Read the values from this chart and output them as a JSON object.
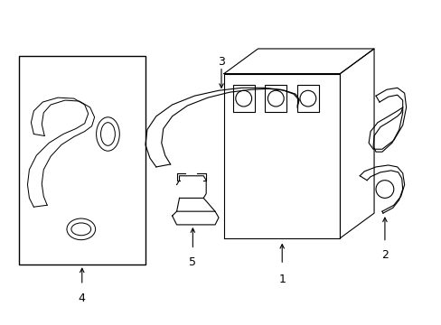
{
  "background_color": "#ffffff",
  "line_color": "#000000",
  "line_width": 0.8,
  "fig_width": 4.89,
  "fig_height": 3.6,
  "dpi": 100
}
